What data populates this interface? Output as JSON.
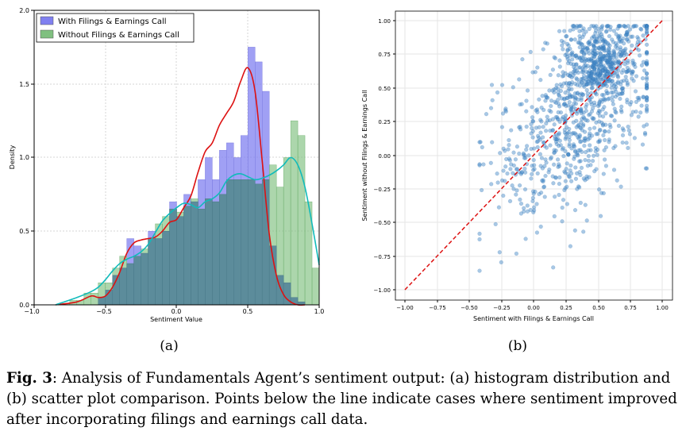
{
  "figure": {
    "caption_label": "Fig. 3",
    "caption_text": ": Analysis of Fundamentals Agent’s sentiment output: (a) histogram distribution and (b) scatter plot comparison. Points below the line indicate cases where sentiment improved after incorporating filings and earnings call data."
  },
  "colors": {
    "hist_with": "#8080f0",
    "hist_without": "#80c080",
    "overlap": "#5a8a9a",
    "kde_with": "#dd1111",
    "kde_without": "#11bbbb",
    "scatter_point": "#3d85c6",
    "diagonal": "#dd1111"
  },
  "chart_data": [
    {
      "type": "bar",
      "subtitle": "(a)",
      "title": "",
      "xlabel": "Sentiment Value",
      "ylabel": "Density",
      "xlim": [
        -1.0,
        1.0
      ],
      "ylim": [
        0.0,
        2.0
      ],
      "xticks": [
        "−1.0",
        "−0.5",
        "0.0",
        "0.5",
        "1.0"
      ],
      "yticks": [
        "0.0",
        "0.5",
        "1.0",
        "1.5",
        "2.0"
      ],
      "legend_position": "upper-left",
      "bin_edges": [
        -0.85,
        -0.8,
        -0.75,
        -0.7,
        -0.65,
        -0.6,
        -0.55,
        -0.5,
        -0.45,
        -0.4,
        -0.35,
        -0.3,
        -0.25,
        -0.2,
        -0.15,
        -0.1,
        -0.05,
        0.0,
        0.05,
        0.1,
        0.15,
        0.2,
        0.25,
        0.3,
        0.35,
        0.4,
        0.45,
        0.5,
        0.55,
        0.6,
        0.65,
        0.7,
        0.75,
        0.8,
        0.85,
        0.9,
        0.95,
        1.0
      ],
      "series": [
        {
          "name": "With Filings & Earnings Call",
          "values": [
            0.0,
            0.0,
            0.0,
            0.0,
            0.0,
            0.0,
            0.05,
            0.1,
            0.2,
            0.25,
            0.45,
            0.4,
            0.35,
            0.5,
            0.45,
            0.5,
            0.7,
            0.6,
            0.75,
            0.7,
            0.85,
            1.0,
            0.85,
            1.05,
            1.1,
            1.0,
            1.15,
            1.75,
            1.65,
            1.45,
            0.4,
            0.2,
            0.15,
            0.05,
            0.02,
            0.0,
            0.0
          ]
        },
        {
          "name": "Without Filings & Earnings Call",
          "values": [
            0.0,
            0.01,
            0.03,
            0.03,
            0.08,
            0.08,
            0.15,
            0.15,
            0.25,
            0.33,
            0.28,
            0.33,
            0.38,
            0.45,
            0.55,
            0.6,
            0.65,
            0.63,
            0.67,
            0.72,
            0.65,
            0.72,
            0.7,
            0.75,
            0.85,
            0.85,
            0.85,
            0.85,
            0.82,
            0.85,
            0.95,
            0.8,
            1.0,
            1.25,
            1.15,
            0.7,
            0.25
          ]
        }
      ],
      "kde": [
        {
          "name": "With Filings & Earnings Call",
          "x": [
            -0.85,
            -0.7,
            -0.6,
            -0.55,
            -0.5,
            -0.45,
            -0.4,
            -0.35,
            -0.3,
            -0.25,
            -0.2,
            -0.15,
            -0.1,
            -0.05,
            0.0,
            0.05,
            0.1,
            0.15,
            0.2,
            0.25,
            0.3,
            0.35,
            0.4,
            0.45,
            0.5,
            0.55,
            0.6,
            0.65,
            0.7,
            0.75,
            0.8,
            0.85,
            0.9
          ],
          "y": [
            0.0,
            0.02,
            0.06,
            0.05,
            0.06,
            0.12,
            0.22,
            0.35,
            0.42,
            0.44,
            0.45,
            0.46,
            0.5,
            0.56,
            0.58,
            0.66,
            0.74,
            0.9,
            1.04,
            1.1,
            1.22,
            1.3,
            1.38,
            1.52,
            1.61,
            1.45,
            0.98,
            0.48,
            0.2,
            0.07,
            0.02,
            0.0,
            0.0
          ]
        },
        {
          "name": "Without Filings & Earnings Call",
          "x": [
            -0.85,
            -0.7,
            -0.6,
            -0.55,
            -0.5,
            -0.45,
            -0.4,
            -0.35,
            -0.3,
            -0.25,
            -0.2,
            -0.15,
            -0.1,
            -0.05,
            0.0,
            0.05,
            0.1,
            0.15,
            0.2,
            0.25,
            0.3,
            0.35,
            0.4,
            0.45,
            0.5,
            0.55,
            0.6,
            0.65,
            0.7,
            0.75,
            0.8,
            0.85,
            0.9,
            0.95,
            1.0
          ],
          "y": [
            0.0,
            0.05,
            0.09,
            0.12,
            0.17,
            0.23,
            0.28,
            0.31,
            0.33,
            0.36,
            0.41,
            0.49,
            0.57,
            0.62,
            0.66,
            0.69,
            0.68,
            0.66,
            0.7,
            0.72,
            0.76,
            0.84,
            0.88,
            0.89,
            0.87,
            0.85,
            0.86,
            0.88,
            0.91,
            0.95,
            1.0,
            0.95,
            0.8,
            0.55,
            0.27
          ]
        }
      ]
    },
    {
      "type": "scatter",
      "subtitle": "(b)",
      "title": "",
      "xlabel": "Sentiment with Filings & Earnings Call",
      "ylabel": "Sentiment without Filings & Earnings Call",
      "xlim": [
        -1.07,
        1.07
      ],
      "ylim": [
        -1.07,
        1.07
      ],
      "xticks": [
        "−1.00",
        "−0.75",
        "−0.50",
        "−0.25",
        "0.00",
        "0.25",
        "0.50",
        "0.75",
        "1.00"
      ],
      "yticks": [
        "−1.00",
        "−0.75",
        "−0.50",
        "−0.25",
        "0.00",
        "0.25",
        "0.50",
        "0.75",
        "1.00"
      ],
      "diagonal": {
        "x": [
          -1.0,
          1.0
        ],
        "y": [
          -1.0,
          1.0
        ]
      },
      "cluster_mean": {
        "x": 0.35,
        "y": 0.35
      },
      "n_points": 1200
    }
  ]
}
